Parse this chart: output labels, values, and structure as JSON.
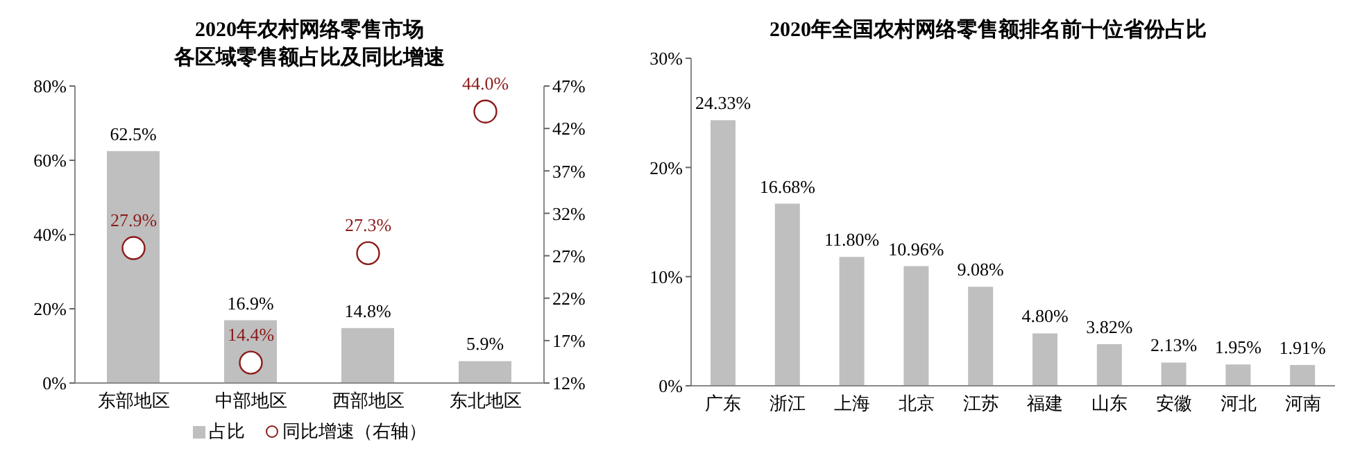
{
  "chart_data": [
    {
      "type": "bar",
      "title": "2020年农村网络零售市场",
      "subtitle": "各区域零售额占比及同比增速",
      "categories": [
        "东部地区",
        "中部地区",
        "西部地区",
        "东北地区"
      ],
      "series": [
        {
          "name": "占比",
          "color": "#bfbfbf",
          "values": [
            62.5,
            16.9,
            14.8,
            5.9
          ],
          "value_labels": [
            "62.5%",
            "16.9%",
            "14.8%",
            "5.9%"
          ]
        },
        {
          "name": "同比增速（右轴）",
          "type": "scatter",
          "axis": "y2",
          "marker": "circle",
          "color": "#8b1a1a",
          "values": [
            27.9,
            14.4,
            27.3,
            44.0
          ],
          "value_labels": [
            "27.9%",
            "14.4%",
            "27.3%",
            "44.0%"
          ]
        }
      ],
      "ylim": [
        0,
        80
      ],
      "yticks": [
        {
          "value": 0,
          "label": "0%"
        },
        {
          "value": 20,
          "label": "20%"
        },
        {
          "value": 40,
          "label": "40%"
        },
        {
          "value": 60,
          "label": "60%"
        },
        {
          "value": 80,
          "label": "80%"
        }
      ],
      "y2lim": [
        12,
        47
      ],
      "y2ticks": [
        {
          "value": 12,
          "label": "12%"
        },
        {
          "value": 17,
          "label": "17%"
        },
        {
          "value": 22,
          "label": "22%"
        },
        {
          "value": 27,
          "label": "27%"
        },
        {
          "value": 32,
          "label": "32%"
        },
        {
          "value": 37,
          "label": "37%"
        },
        {
          "value": 42,
          "label": "42%"
        },
        {
          "value": 47,
          "label": "47%"
        }
      ],
      "legend": "bottom"
    },
    {
      "type": "bar",
      "title": "2020年全国农村网络零售额排名前十位省份占比",
      "categories": [
        "广东",
        "浙江",
        "上海",
        "北京",
        "江苏",
        "福建",
        "山东",
        "安徽",
        "河北",
        "河南"
      ],
      "series": [
        {
          "color": "#bfbfbf",
          "values": [
            24.33,
            16.68,
            11.8,
            10.96,
            9.08,
            4.8,
            3.82,
            2.13,
            1.95,
            1.91
          ],
          "value_labels": [
            "24.33%",
            "16.68%",
            "11.80%",
            "10.96%",
            "9.08%",
            "4.80%",
            "3.82%",
            "2.13%",
            "1.95%",
            "1.91%"
          ]
        }
      ],
      "ylim": [
        0,
        30
      ],
      "yticks": [
        {
          "value": 0,
          "label": "0%"
        },
        {
          "value": 10,
          "label": "10%"
        },
        {
          "value": 20,
          "label": "20%"
        },
        {
          "value": 30,
          "label": "30%"
        }
      ]
    }
  ]
}
